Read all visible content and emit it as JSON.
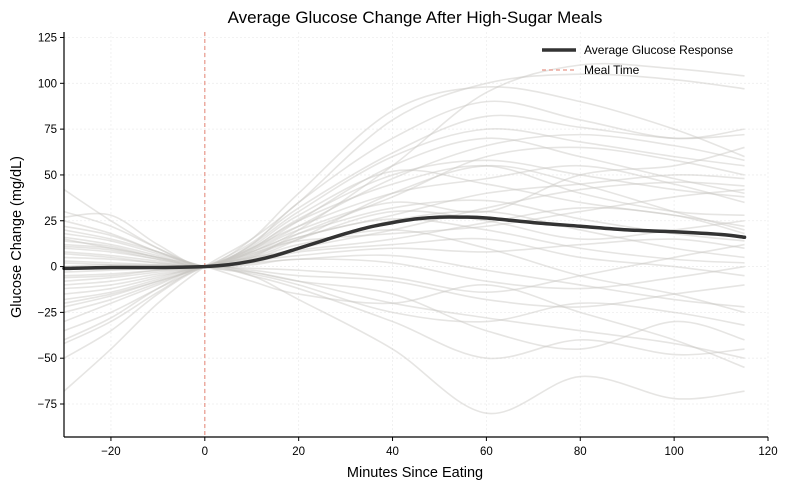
{
  "chart_data": {
    "type": "line",
    "title": "Average Glucose Change After High-Sugar Meals",
    "xlabel": "Minutes Since Eating",
    "ylabel": "Glucose Change (mg/dL)",
    "xlim": [
      -30,
      120
    ],
    "ylim": [
      -93,
      128
    ],
    "xticks": [
      -20,
      0,
      20,
      40,
      60,
      80,
      100,
      120
    ],
    "yticks": [
      -75,
      -50,
      -25,
      0,
      25,
      50,
      75,
      100,
      125
    ],
    "grid": true,
    "legend_position": "top-right",
    "meal_time": {
      "name": "Meal Time",
      "x": 0,
      "color": "#e8978a"
    },
    "average_series": {
      "name": "Average Glucose Response",
      "color": "#333333",
      "x": [
        -30,
        -20,
        -10,
        0,
        5,
        10,
        15,
        20,
        25,
        30,
        35,
        40,
        45,
        50,
        55,
        60,
        70,
        80,
        90,
        100,
        110,
        115
      ],
      "y": [
        -1,
        -0.5,
        -0.5,
        0,
        1,
        3,
        6,
        10,
        14,
        18,
        21.5,
        24,
        26,
        27,
        27,
        26.5,
        24,
        22,
        20,
        19,
        17.5,
        16
      ]
    },
    "individual_series_color": "#c8c6c0",
    "individual_series": [
      {
        "x": [
          -30,
          -20,
          -10,
          0,
          10,
          20,
          40,
          60,
          80,
          100,
          115
        ],
        "y": [
          -68,
          -45,
          -20,
          0,
          15,
          35,
          80,
          100,
          105,
          102,
          97
        ]
      },
      {
        "x": [
          -30,
          -20,
          -10,
          0,
          10,
          20,
          40,
          60,
          80,
          100,
          115
        ],
        "y": [
          42,
          25,
          10,
          0,
          8,
          20,
          55,
          95,
          110,
          108,
          104
        ]
      },
      {
        "x": [
          -30,
          -20,
          -10,
          0,
          10,
          20,
          40,
          60,
          80,
          100,
          115
        ],
        "y": [
          -40,
          -28,
          -12,
          0,
          -5,
          -18,
          -45,
          -80,
          -60,
          -72,
          -68
        ]
      },
      {
        "x": [
          -30,
          -20,
          -10,
          0,
          10,
          20,
          40,
          60,
          80,
          100,
          115
        ],
        "y": [
          27,
          28,
          12,
          0,
          12,
          30,
          60,
          75,
          68,
          60,
          55
        ]
      },
      {
        "x": [
          -30,
          -20,
          -10,
          0,
          10,
          20,
          40,
          60,
          80,
          100,
          115
        ],
        "y": [
          -50,
          -35,
          -15,
          0,
          5,
          15,
          40,
          55,
          45,
          30,
          20
        ]
      },
      {
        "x": [
          -30,
          -20,
          -10,
          0,
          10,
          20,
          40,
          60,
          80,
          100,
          115
        ],
        "y": [
          15,
          10,
          5,
          0,
          -8,
          -15,
          -20,
          -10,
          -25,
          -40,
          -55
        ]
      },
      {
        "x": [
          -30,
          -20,
          -10,
          0,
          10,
          20,
          40,
          60,
          80,
          100,
          115
        ],
        "y": [
          8,
          6,
          3,
          0,
          10,
          25,
          45,
          55,
          40,
          30,
          28
        ]
      },
      {
        "x": [
          -30,
          -20,
          -10,
          0,
          10,
          20,
          40,
          60,
          80,
          100,
          115
        ],
        "y": [
          -20,
          -15,
          -8,
          0,
          5,
          10,
          25,
          30,
          20,
          10,
          5
        ]
      },
      {
        "x": [
          -30,
          -20,
          -10,
          0,
          10,
          20,
          40,
          60,
          80,
          100,
          115
        ],
        "y": [
          20,
          15,
          8,
          0,
          -3,
          -8,
          -15,
          -35,
          -45,
          -30,
          -40
        ]
      },
      {
        "x": [
          -30,
          -20,
          -10,
          0,
          10,
          20,
          40,
          60,
          80,
          100,
          115
        ],
        "y": [
          -10,
          -8,
          -4,
          0,
          8,
          20,
          35,
          30,
          50,
          55,
          65
        ]
      },
      {
        "x": [
          -30,
          -20,
          -10,
          0,
          10,
          20,
          40,
          60,
          80,
          100,
          115
        ],
        "y": [
          5,
          4,
          2,
          0,
          12,
          35,
          70,
          90,
          80,
          70,
          75
        ]
      },
      {
        "x": [
          -30,
          -20,
          -10,
          0,
          10,
          20,
          40,
          60,
          80,
          100,
          115
        ],
        "y": [
          -30,
          -20,
          -10,
          0,
          -5,
          -12,
          -30,
          -50,
          -40,
          -48,
          -45
        ]
      },
      {
        "x": [
          -30,
          -20,
          -10,
          0,
          10,
          20,
          40,
          60,
          80,
          100,
          115
        ],
        "y": [
          12,
          10,
          5,
          0,
          2,
          8,
          12,
          15,
          5,
          0,
          -5
        ]
      },
      {
        "x": [
          -30,
          -20,
          -10,
          0,
          10,
          20,
          40,
          60,
          80,
          100,
          115
        ],
        "y": [
          -5,
          -4,
          -2,
          0,
          10,
          22,
          40,
          48,
          55,
          45,
          35
        ]
      },
      {
        "x": [
          -30,
          -20,
          -10,
          0,
          10,
          20,
          40,
          60,
          80,
          100,
          115
        ],
        "y": [
          25,
          18,
          8,
          0,
          6,
          15,
          30,
          25,
          15,
          20,
          25
        ]
      },
      {
        "x": [
          -30,
          -20,
          -10,
          0,
          10,
          20,
          40,
          60,
          80,
          100,
          115
        ],
        "y": [
          -15,
          -12,
          -6,
          0,
          -2,
          -5,
          -8,
          -18,
          -22,
          -15,
          -10
        ]
      },
      {
        "x": [
          -30,
          -20,
          -10,
          0,
          10,
          20,
          40,
          60,
          80,
          100,
          115
        ],
        "y": [
          0,
          1,
          1,
          0,
          15,
          40,
          85,
          98,
          90,
          75,
          60
        ]
      },
      {
        "x": [
          -30,
          -20,
          -10,
          0,
          10,
          20,
          40,
          60,
          80,
          100,
          115
        ],
        "y": [
          -25,
          -18,
          -9,
          0,
          4,
          12,
          20,
          10,
          -5,
          -15,
          -25
        ]
      },
      {
        "x": [
          -30,
          -20,
          -10,
          0,
          10,
          20,
          40,
          60,
          80,
          100,
          115
        ],
        "y": [
          10,
          8,
          4,
          0,
          5,
          18,
          38,
          60,
          65,
          58,
          50
        ]
      },
      {
        "x": [
          -30,
          -20,
          -10,
          0,
          10,
          20,
          40,
          60,
          80,
          100,
          115
        ],
        "y": [
          -8,
          -6,
          -3,
          0,
          7,
          14,
          18,
          22,
          30,
          38,
          42
        ]
      },
      {
        "x": [
          -30,
          -20,
          -10,
          0,
          10,
          20,
          40,
          60,
          80,
          100,
          115
        ],
        "y": [
          18,
          14,
          7,
          0,
          -4,
          -10,
          -25,
          -30,
          -20,
          -25,
          -32
        ]
      },
      {
        "x": [
          -30,
          -20,
          -10,
          0,
          10,
          20,
          40,
          60,
          80,
          100,
          115
        ],
        "y": [
          -35,
          -25,
          -12,
          0,
          9,
          25,
          55,
          70,
          60,
          48,
          40
        ]
      },
      {
        "x": [
          -30,
          -20,
          -10,
          0,
          10,
          20,
          40,
          60,
          80,
          100,
          115
        ],
        "y": [
          3,
          2,
          1,
          0,
          3,
          6,
          10,
          8,
          12,
          15,
          10
        ]
      },
      {
        "x": [
          -30,
          -20,
          -10,
          0,
          10,
          20,
          40,
          60,
          80,
          100,
          115
        ],
        "y": [
          -12,
          -10,
          -5,
          0,
          11,
          28,
          52,
          45,
          35,
          28,
          22
        ]
      },
      {
        "x": [
          -30,
          -20,
          -10,
          0,
          10,
          20,
          40,
          60,
          80,
          100,
          115
        ],
        "y": [
          22,
          17,
          8,
          0,
          1,
          4,
          2,
          -8,
          -12,
          -6,
          0
        ]
      },
      {
        "x": [
          -30,
          -20,
          -10,
          0,
          10,
          20,
          40,
          60,
          80,
          100,
          115
        ],
        "y": [
          -3,
          -2,
          -1,
          0,
          6,
          16,
          28,
          40,
          45,
          50,
          48
        ]
      },
      {
        "x": [
          -30,
          -20,
          -10,
          0,
          10,
          20,
          40,
          60,
          80,
          100,
          115
        ],
        "y": [
          14,
          11,
          5,
          0,
          9,
          22,
          48,
          66,
          72,
          66,
          58
        ]
      },
      {
        "x": [
          -30,
          -20,
          -10,
          0,
          10,
          20,
          40,
          60,
          80,
          100,
          115
        ],
        "y": [
          -18,
          -14,
          -7,
          0,
          2,
          4,
          6,
          -2,
          -10,
          -18,
          -22
        ]
      },
      {
        "x": [
          -30,
          -20,
          -10,
          0,
          10,
          20,
          40,
          60,
          80,
          100,
          115
        ],
        "y": [
          7,
          5,
          2,
          0,
          -1,
          -2,
          -6,
          -14,
          -5,
          5,
          12
        ]
      },
      {
        "x": [
          -30,
          -20,
          -10,
          0,
          10,
          20,
          40,
          60,
          80,
          100,
          115
        ],
        "y": [
          -22,
          -16,
          -8,
          0,
          13,
          32,
          62,
          82,
          76,
          70,
          72
        ]
      },
      {
        "x": [
          -30,
          -20,
          -10,
          0,
          10,
          20,
          40,
          60,
          80,
          100,
          115
        ],
        "y": [
          30,
          22,
          10,
          0,
          4,
          9,
          15,
          24,
          32,
          28,
          18
        ]
      },
      {
        "x": [
          -30,
          -20,
          -10,
          0,
          10,
          20,
          40,
          60,
          80,
          100,
          115
        ],
        "y": [
          -6,
          -5,
          -2,
          0,
          8,
          18,
          32,
          36,
          26,
          18,
          14
        ]
      },
      {
        "x": [
          -30,
          -20,
          -10,
          0,
          10,
          20,
          40,
          60,
          80,
          100,
          115
        ],
        "y": [
          11,
          9,
          4,
          0,
          3,
          10,
          20,
          32,
          42,
          46,
          44
        ]
      },
      {
        "x": [
          -30,
          -20,
          -10,
          0,
          10,
          20,
          40,
          60,
          80,
          100,
          115
        ],
        "y": [
          -42,
          -30,
          -14,
          0,
          -3,
          -8,
          -20,
          -28,
          -35,
          -42,
          -50
        ]
      },
      {
        "x": [
          -30,
          -20,
          -10,
          0,
          10,
          20,
          40,
          60,
          80,
          100,
          115
        ],
        "y": [
          2,
          1,
          0,
          0,
          10,
          26,
          50,
          58,
          50,
          42,
          38
        ]
      },
      {
        "x": [
          -30,
          -20,
          -10,
          0,
          10,
          20,
          40,
          60,
          80,
          100,
          115
        ],
        "y": [
          16,
          12,
          6,
          0,
          7,
          16,
          26,
          20,
          10,
          4,
          2
        ]
      }
    ]
  }
}
